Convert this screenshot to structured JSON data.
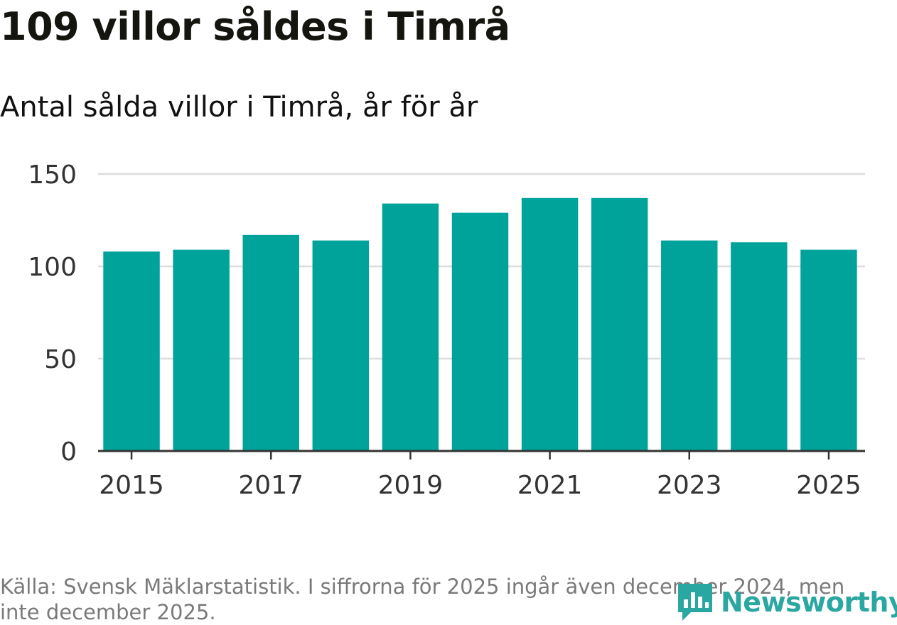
{
  "title": "109 villor såldes i Timrå",
  "subtitle": "Antal sålda villor i Timrå, år för år",
  "source_note": "Källa: Svensk Mäklarstatistik. I siffrorna för 2025 ingår även december 2024, men inte december 2025.",
  "brand": {
    "name": "Newsworthy",
    "color": "#2aa7a0"
  },
  "colors": {
    "bar": "#00a39a",
    "grid": "#dddddd",
    "axis": "#333333",
    "tick_text": "#333333"
  },
  "chart_data": {
    "type": "bar",
    "title": "Antal sålda villor i Timrå, år för år",
    "xlabel": "",
    "ylabel": "",
    "categories": [
      "2015",
      "2016",
      "2017",
      "2018",
      "2019",
      "2020",
      "2021",
      "2022",
      "2023",
      "2024",
      "2025"
    ],
    "values": [
      108,
      109,
      117,
      114,
      134,
      129,
      137,
      137,
      114,
      113,
      109
    ],
    "x_tick_labels": [
      "2015",
      "2017",
      "2019",
      "2021",
      "2023",
      "2025"
    ],
    "y_ticks": [
      0,
      50,
      100,
      150
    ],
    "ylim": [
      0,
      150
    ],
    "grid": true
  }
}
